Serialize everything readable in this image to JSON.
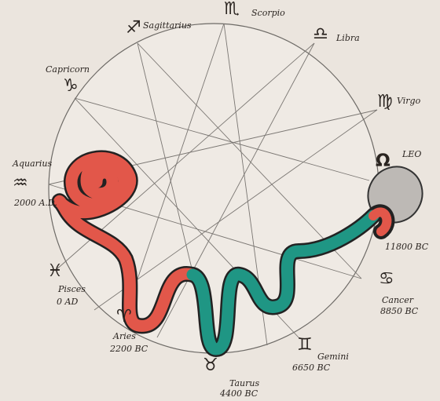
{
  "signs": [
    {
      "name": "Scorpio",
      "symbol": "♏"
    },
    {
      "name": "Libra",
      "symbol": "♎"
    },
    {
      "name": "Virgo",
      "symbol": "♍"
    },
    {
      "name": "LEO",
      "symbol": "Ω",
      "date": "11800 BC"
    },
    {
      "name": "Cancer",
      "symbol": "♋",
      "date": "8850 BC"
    },
    {
      "name": "Gemini",
      "symbol": "♊",
      "date": "6650 BC"
    },
    {
      "name": "Taurus",
      "symbol": "♉",
      "date": "4400 BC"
    },
    {
      "name": "Aries",
      "symbol": "♈",
      "date": "2200 BC"
    },
    {
      "name": "Pisces",
      "symbol": "♓",
      "date": "0 AD"
    },
    {
      "name": "Aquarius",
      "symbol": "♒",
      "date": "2000 A.D."
    },
    {
      "name": "Capricorn",
      "symbol": "♑"
    },
    {
      "name": "Sagittarius",
      "symbol": "♐"
    }
  ]
}
